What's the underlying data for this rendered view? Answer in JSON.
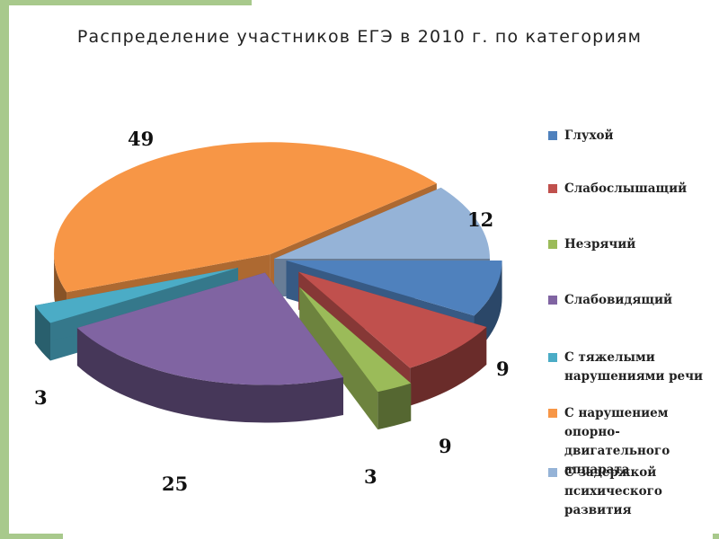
{
  "chart_data": {
    "type": "pie",
    "title": "Распределение участников ЕГЭ в 2010 г. по категориям",
    "categories": [
      "Глухой",
      "Слабослышащий",
      "Незрячий",
      "Слабовидящий",
      "С тяжелыми нарушениями речи",
      "С нарушением опорно-двигательного аппарата",
      "С задержкой психического развития"
    ],
    "values": [
      9,
      9,
      3,
      25,
      3,
      49,
      12
    ],
    "value_labels": [
      "9",
      "9",
      "3",
      "25",
      "3",
      "49",
      "12"
    ],
    "colors": [
      "#4f81bd",
      "#c0504d",
      "#9bbb59",
      "#8064a2",
      "#4bacc6",
      "#f79646",
      "#95b3d7"
    ],
    "legend_lines": [
      [
        "Глухой"
      ],
      [
        "Слабослышащий"
      ],
      [
        "Незрячий"
      ],
      [
        "Слабовидящий"
      ],
      [
        "С тяжелыми",
        "нарушениями речи"
      ],
      [
        "С нарушением опорно-",
        "двигательного",
        "аппарата"
      ],
      [
        "С задержкой",
        "психического",
        "развития"
      ]
    ],
    "legend_position": "right",
    "style": "3d-exploded"
  }
}
